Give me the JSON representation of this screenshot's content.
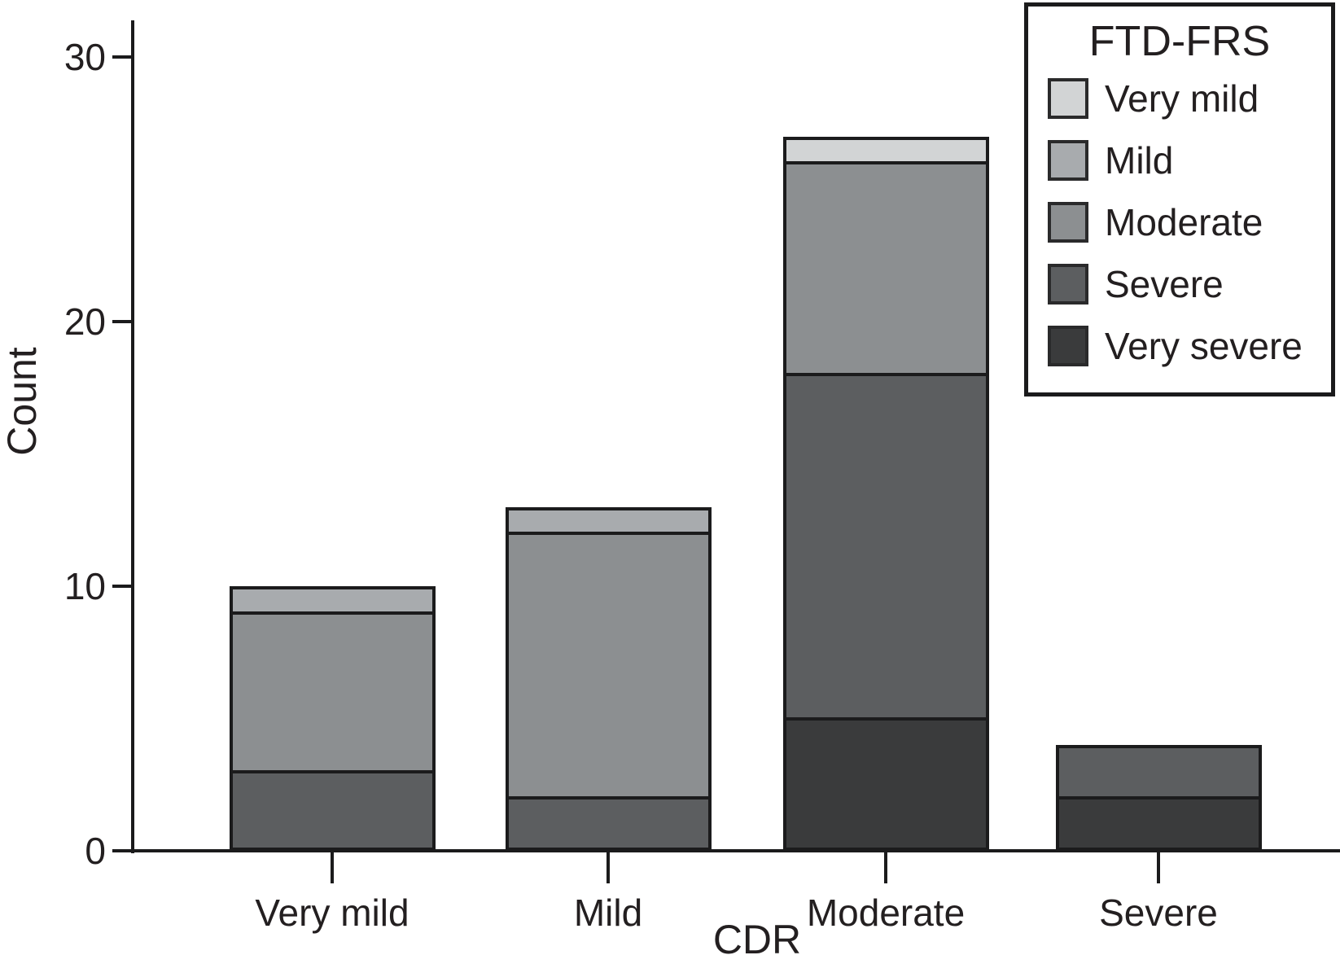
{
  "chart_data": {
    "type": "bar",
    "stacked": true,
    "stack_from": "bottom",
    "xlabel": "CDR",
    "ylabel": "Count",
    "categories": [
      "Very mild",
      "Mild",
      "Moderate",
      "Severe"
    ],
    "series": [
      {
        "name": "Very severe",
        "color": "#3a3b3c",
        "values": [
          0,
          0,
          5,
          2
        ]
      },
      {
        "name": "Severe",
        "color": "#5c5e60",
        "values": [
          3,
          2,
          13,
          2
        ]
      },
      {
        "name": "Moderate",
        "color": "#8c8f91",
        "values": [
          6,
          10,
          8,
          0
        ]
      },
      {
        "name": "Mild",
        "color": "#a8abae",
        "values": [
          1,
          1,
          0,
          0
        ]
      },
      {
        "name": "Very mild",
        "color": "#d2d4d5",
        "values": [
          0,
          0,
          1,
          0
        ]
      }
    ],
    "bar_totals": [
      10,
      13,
      27,
      4
    ],
    "y_ticks": [
      0,
      10,
      20,
      30
    ],
    "ylim": [
      0,
      31.4
    ],
    "grid": false,
    "legend": {
      "title": "FTD-FRS",
      "position": "top-right",
      "entries": [
        {
          "label": "Very mild",
          "color": "#d2d4d5"
        },
        {
          "label": "Mild",
          "color": "#a8abae"
        },
        {
          "label": "Moderate",
          "color": "#8c8f91"
        },
        {
          "label": "Severe",
          "color": "#5c5e60"
        },
        {
          "label": "Very severe",
          "color": "#3a3b3c"
        }
      ]
    }
  },
  "colors": {
    "axis": "#1b1b1c",
    "text": "#231f20",
    "background": "#ffffff"
  }
}
